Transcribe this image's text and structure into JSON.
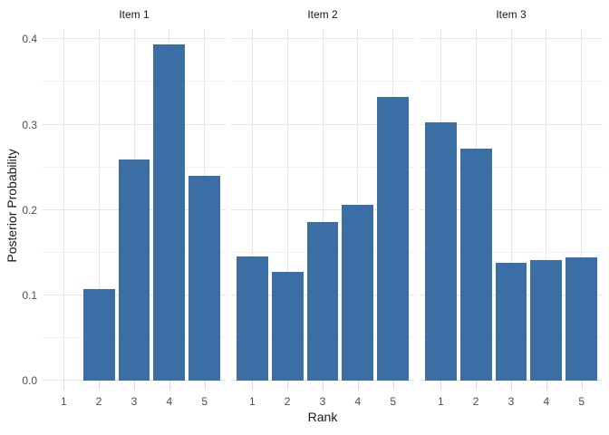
{
  "chart_data": {
    "type": "bar",
    "title": "",
    "xlabel": "Rank",
    "ylabel": "Posterior Probability",
    "categories": [
      "1",
      "2",
      "3",
      "4",
      "5"
    ],
    "facets": [
      {
        "label": "Item 1",
        "values": [
          0.0,
          0.107,
          0.259,
          0.394,
          0.24
        ]
      },
      {
        "label": "Item 2",
        "values": [
          0.146,
          0.127,
          0.186,
          0.206,
          0.332
        ]
      },
      {
        "label": "Item 3",
        "values": [
          0.303,
          0.272,
          0.138,
          0.141,
          0.144
        ]
      }
    ],
    "y_ticks": [
      0.0,
      0.1,
      0.2,
      0.3,
      0.4
    ],
    "y_tick_labels": [
      "0.0",
      "0.1",
      "0.2",
      "0.3",
      "0.4"
    ],
    "y_minor_ticks": [
      0.05,
      0.15,
      0.25,
      0.35
    ],
    "ylim": [
      0,
      0.4121
    ],
    "grid": "on",
    "legend": "none",
    "bar_color": "#3a6ea5",
    "grid_major_color": "#e6e6e6",
    "grid_minor_color": "#f2f2f2",
    "tick_mark_color": "#d9d9d9",
    "tick_label_color": "#4d4d4d",
    "title_text_color": "#1a1a1a",
    "background": "#ffffff"
  }
}
